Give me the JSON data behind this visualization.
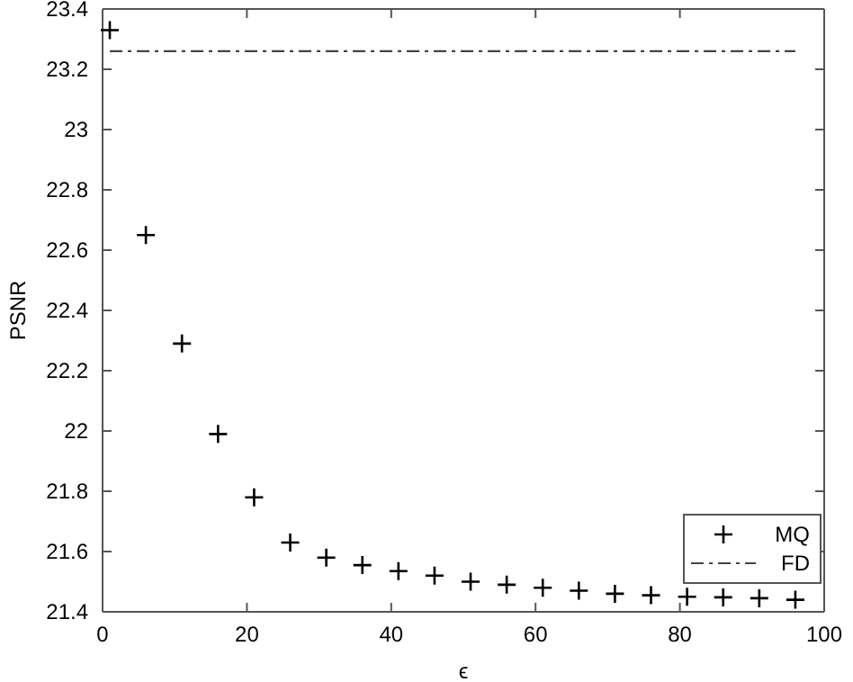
{
  "chart_data": {
    "type": "scatter",
    "xlabel": "ϵ",
    "ylabel": "PSNR",
    "xlim": [
      0,
      100
    ],
    "xticks": [
      0,
      20,
      40,
      60,
      80,
      100
    ],
    "ylim": [
      21.4,
      23.4
    ],
    "yticks": [
      21.4,
      21.6,
      21.8,
      22,
      22.2,
      22.4,
      22.6,
      22.8,
      23,
      23.2,
      23.4
    ],
    "series": [
      {
        "name": "MQ",
        "color": "#000000",
        "marker": "cross",
        "x": [
          1,
          6,
          11,
          16,
          21,
          26,
          31,
          36,
          41,
          46,
          51,
          56,
          61,
          66,
          71,
          76,
          81,
          86,
          91,
          96
        ],
        "values": [
          23.33,
          22.65,
          22.29,
          21.99,
          21.78,
          21.63,
          21.58,
          21.555,
          21.535,
          21.52,
          21.5,
          21.49,
          21.48,
          21.47,
          21.46,
          21.455,
          21.45,
          21.448,
          21.445,
          21.44
        ]
      },
      {
        "name": "FD",
        "type": "line",
        "color": "#444444",
        "line_style": "dashdot",
        "marker": "none",
        "x": [
          1,
          96
        ],
        "values": [
          23.26,
          23.26
        ]
      }
    ],
    "legend": "bottom right",
    "grid": false
  }
}
